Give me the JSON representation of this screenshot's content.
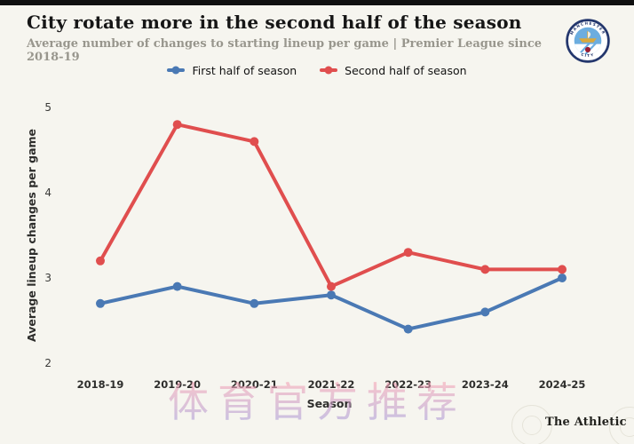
{
  "page": {
    "background_color": "#f6f5ef",
    "top_bar_color": "#101010",
    "accent_blue": "#4a79b4",
    "accent_red": "#e04e4e"
  },
  "header": {
    "title": "City rotate more in the second half of the season",
    "subtitle": "Average number of changes to starting lineup per game | Premier League since 2018-19",
    "badge": {
      "name": "manchester-city-crest",
      "top_text": "MANCHESTER",
      "bottom_text": "CITY"
    }
  },
  "legend": [
    {
      "label": "First half of season",
      "color": "#4a79b4"
    },
    {
      "label": "Second half of season",
      "color": "#e04e4e"
    }
  ],
  "chart_data": {
    "type": "line",
    "title": "City rotate more in the second half of the season",
    "subtitle": "Average number of changes to starting lineup per game | Premier League since 2018-19",
    "xlabel": "Season",
    "ylabel": "Average lineup changes per game",
    "categories": [
      "2018-19",
      "2019-20",
      "2020-21",
      "2021-22",
      "2022-23",
      "2023-24",
      "2024-25"
    ],
    "series": [
      {
        "name": "First half of season",
        "color": "#4a79b4",
        "values": [
          2.7,
          2.9,
          2.7,
          2.8,
          2.4,
          2.6,
          3.0
        ]
      },
      {
        "name": "Second half of season",
        "color": "#e04e4e",
        "values": [
          3.2,
          4.8,
          4.6,
          2.9,
          3.3,
          3.1,
          3.1
        ]
      }
    ],
    "ylim": [
      2,
      5
    ],
    "yticks": [
      5,
      4,
      3,
      2
    ],
    "grid": false,
    "legend_position": "top-center",
    "marker": "circle",
    "line_width": 4
  },
  "watermark": {
    "text": "体育官方推荐"
  },
  "footer": {
    "brand": "The Athletic"
  }
}
